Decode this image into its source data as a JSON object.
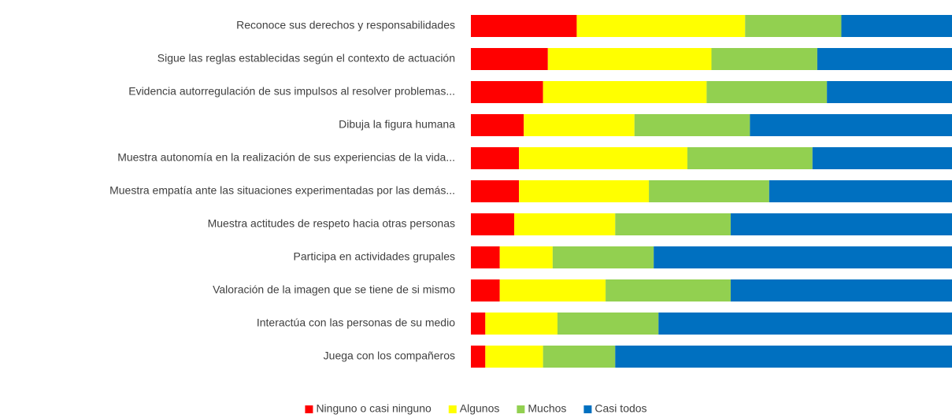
{
  "chart_data": {
    "type": "bar",
    "orientation": "horizontal",
    "stacked": true,
    "categories": [
      "Reconoce sus derechos y responsabilidades",
      "Sigue las reglas establecidas según el contexto de actuación",
      "Evidencia autorregulación de sus impulsos al resolver problemas...",
      "Dibuja la figura humana",
      "Muestra autonomía en la realización de sus experiencias de la vida...",
      "Muestra empatía ante las situaciones experimentadas por las demás...",
      "Muestra actitudes de respeto hacia otras personas",
      "Participa en actividades grupales",
      "Valoración de la imagen que se tiene de si mismo",
      "Interactúa con las personas de su medio",
      "Juega con los compañeros"
    ],
    "series": [
      {
        "name": "Ninguno o casi ninguno",
        "color": "#ff0000",
        "values": [
          22,
          16,
          15,
          11,
          10,
          10,
          9,
          6,
          6,
          3,
          3
        ]
      },
      {
        "name": "Algunos",
        "color": "#ffff00",
        "values": [
          35,
          34,
          34,
          23,
          35,
          27,
          21,
          11,
          22,
          15,
          12
        ]
      },
      {
        "name": "Muchos",
        "color": "#92d050",
        "values": [
          20,
          22,
          25,
          24,
          26,
          25,
          24,
          21,
          26,
          21,
          15
        ]
      },
      {
        "name": "Casi todos",
        "color": "#0070c0",
        "values": [
          23,
          28,
          26,
          42,
          29,
          38,
          46,
          62,
          46,
          61,
          70
        ]
      }
    ],
    "xlim": [
      0,
      100
    ],
    "legend": "bottom"
  }
}
